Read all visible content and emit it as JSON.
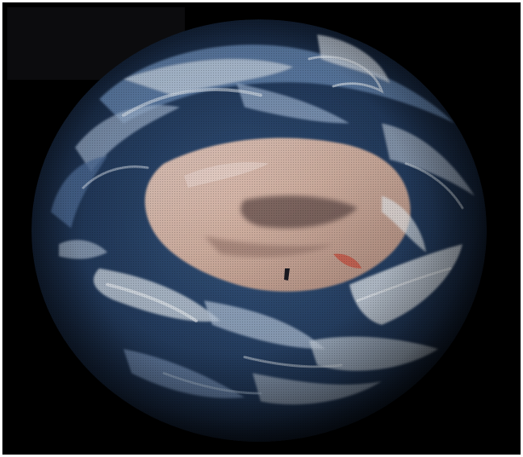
{
  "image": {
    "subject": "planet-earth",
    "background_color": "#000000",
    "border_color": "#ffffff",
    "palette": {
      "ocean_deep": "#142238",
      "ocean": "#2c4a74",
      "cloud_blue": "#7a9cc6",
      "cloud_white": "#e8eef2",
      "land_pink": "#d8b8ae",
      "land_tan": "#b89484",
      "land_dark": "#6e5550",
      "land_red": "#c85a4a",
      "ice": "#dfe6ea"
    }
  }
}
